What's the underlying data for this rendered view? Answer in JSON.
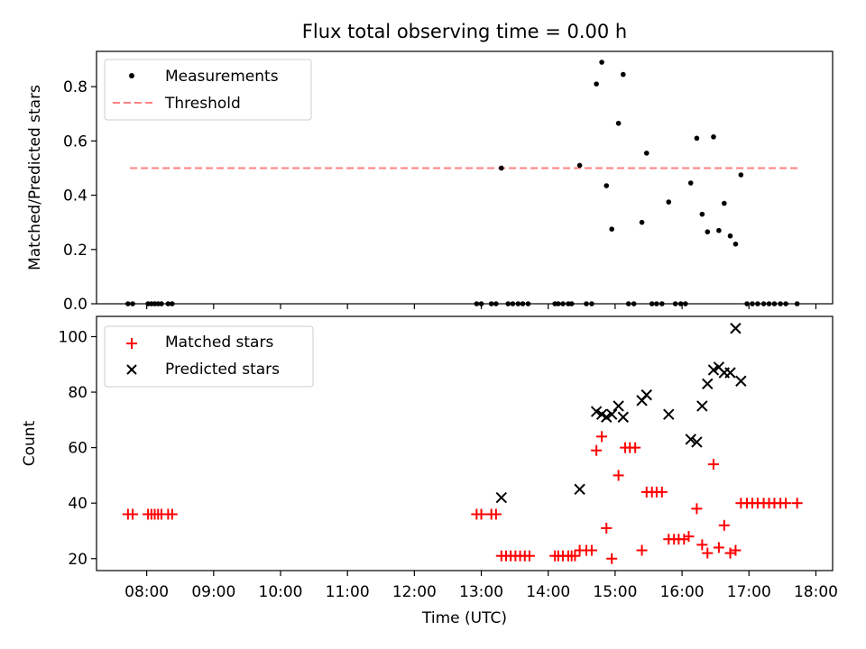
{
  "figure": {
    "title": "Flux total observing time = 0.00 h"
  },
  "chart_data": [
    {
      "type": "scatter",
      "panel": "top",
      "title": "Flux total observing time = 0.00 h",
      "xlabel": "",
      "ylabel": "Matched/Predicted stars",
      "xlim": [
        7.25,
        18.25
      ],
      "ylim": [
        0,
        0.93
      ],
      "yticks": [
        0.0,
        0.2,
        0.4,
        0.6,
        0.8
      ],
      "ytick_labels": [
        "0.0",
        "0.2",
        "0.4",
        "0.6",
        "0.8"
      ],
      "legend": {
        "placement": "top-left",
        "entries": [
          "Measurements",
          "Threshold"
        ]
      },
      "threshold": {
        "name": "Threshold",
        "value": 0.5,
        "x_start": 7.75,
        "x_end": 17.75,
        "color": "#ff8080"
      },
      "series": [
        {
          "name": "Measurements",
          "marker": "dot",
          "color": "#000000",
          "x": [
            7.72,
            7.79,
            8.02,
            8.07,
            8.12,
            8.17,
            8.22,
            8.32,
            8.38,
            12.93,
            13.0,
            13.15,
            13.22,
            13.3,
            13.4,
            13.47,
            13.55,
            13.62,
            13.7,
            14.1,
            14.15,
            14.22,
            14.3,
            14.35,
            14.47,
            14.57,
            14.65,
            14.72,
            14.8,
            14.87,
            14.95,
            15.05,
            15.12,
            15.2,
            15.28,
            15.4,
            15.47,
            15.55,
            15.62,
            15.7,
            15.8,
            15.9,
            15.98,
            16.05,
            16.13,
            16.22,
            16.3,
            16.38,
            16.47,
            16.55,
            16.63,
            16.72,
            16.8,
            16.88,
            16.97,
            17.05,
            17.13,
            17.22,
            17.3,
            17.38,
            17.47,
            17.55,
            17.72
          ],
          "y": [
            0,
            0,
            0,
            0,
            0,
            0,
            0,
            0,
            0,
            0,
            0,
            0,
            0,
            0.5,
            0,
            0,
            0,
            0,
            0,
            0,
            0,
            0,
            0,
            0,
            0.51,
            0,
            0,
            0.81,
            0.89,
            0.435,
            0.275,
            0.665,
            0.845,
            0,
            0,
            0.3,
            0.555,
            0,
            0,
            0,
            0.375,
            0,
            0,
            0,
            0.445,
            0.61,
            0.33,
            0.265,
            0.615,
            0.27,
            0.37,
            0.25,
            0.22,
            0.475,
            0,
            0,
            0,
            0,
            0,
            0,
            0,
            0,
            0
          ]
        }
      ]
    },
    {
      "type": "scatter",
      "panel": "bottom",
      "xlabel": "Time (UTC)",
      "ylabel": "Count",
      "xlim": [
        7.25,
        18.25
      ],
      "ylim": [
        15.7,
        107.3
      ],
      "xticks": [
        8,
        9,
        10,
        11,
        12,
        13,
        14,
        15,
        16,
        17,
        18
      ],
      "xtick_labels": [
        "08:00",
        "09:00",
        "10:00",
        "11:00",
        "12:00",
        "13:00",
        "14:00",
        "15:00",
        "16:00",
        "17:00",
        "18:00"
      ],
      "yticks": [
        20,
        40,
        60,
        80,
        100
      ],
      "ytick_labels": [
        "20",
        "40",
        "60",
        "80",
        "100"
      ],
      "legend": {
        "placement": "top-left",
        "entries": [
          "Matched stars",
          "Predicted stars"
        ]
      },
      "series": [
        {
          "name": "Matched stars",
          "marker": "plus",
          "color": "#ff0000",
          "x": [
            7.72,
            7.79,
            8.02,
            8.07,
            8.12,
            8.17,
            8.22,
            8.32,
            8.38,
            12.93,
            13.0,
            13.15,
            13.22,
            13.3,
            13.37,
            13.44,
            13.51,
            13.58,
            13.65,
            13.72,
            14.1,
            14.15,
            14.22,
            14.3,
            14.35,
            14.4,
            14.47,
            14.57,
            14.65,
            14.72,
            14.8,
            14.87,
            14.95,
            15.05,
            15.15,
            15.22,
            15.3,
            15.4,
            15.47,
            15.55,
            15.62,
            15.7,
            15.8,
            15.88,
            15.95,
            16.03,
            16.1,
            16.22,
            16.3,
            16.38,
            16.47,
            16.55,
            16.63,
            16.72,
            16.8,
            16.88,
            16.97,
            17.05,
            17.13,
            17.22,
            17.3,
            17.38,
            17.47,
            17.55,
            17.72
          ],
          "y": [
            36,
            36,
            36,
            36,
            36,
            36,
            36,
            36,
            36,
            36,
            36,
            36,
            36,
            21,
            21,
            21,
            21,
            21,
            21,
            21,
            21,
            21,
            21,
            21,
            21,
            21,
            23,
            23,
            23,
            59,
            64,
            31,
            20,
            50,
            60,
            60,
            60,
            23,
            44,
            44,
            44,
            44,
            27,
            27,
            27,
            27,
            28,
            38,
            25,
            22,
            54,
            24,
            32,
            22,
            23,
            40,
            40,
            40,
            40,
            40,
            40,
            40,
            40,
            40,
            40
          ]
        },
        {
          "name": "Predicted stars",
          "marker": "x",
          "color": "#000000",
          "x": [
            13.3,
            14.47,
            14.72,
            14.8,
            14.87,
            14.95,
            15.05,
            15.12,
            15.4,
            15.47,
            15.8,
            16.13,
            16.22,
            16.3,
            16.38,
            16.47,
            16.55,
            16.63,
            16.72,
            16.8,
            16.88
          ],
          "y": [
            42,
            45,
            73,
            72,
            71,
            72,
            75,
            71,
            77,
            79,
            72,
            63,
            62,
            75,
            83,
            88,
            89,
            87,
            87,
            103,
            84
          ]
        }
      ]
    }
  ]
}
